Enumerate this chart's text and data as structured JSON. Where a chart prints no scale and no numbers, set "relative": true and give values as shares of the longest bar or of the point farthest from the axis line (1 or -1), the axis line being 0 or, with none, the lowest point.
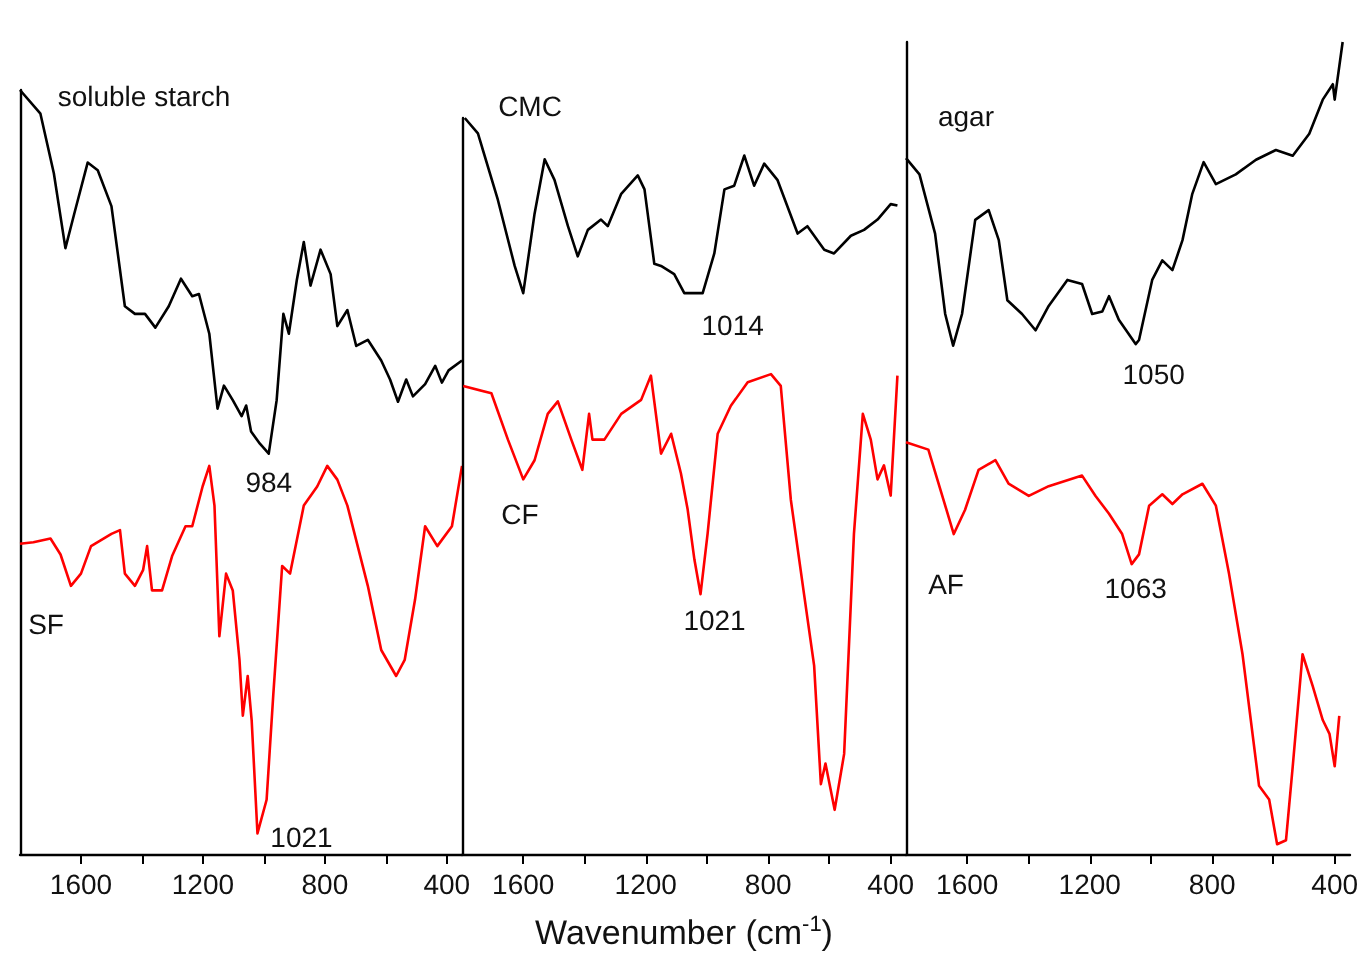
{
  "chart_data": [
    {
      "type": "line",
      "relative": true,
      "xlim": [
        1800,
        350
      ],
      "xticks": [
        1600,
        {
          "value": 1400,
          "label": null
        },
        1200,
        {
          "value": 1000,
          "label": null
        },
        800,
        {
          "value": 600,
          "label": null
        },
        400
      ],
      "series": [
        {
          "color": "#000000",
          "x": [
            1800,
            1733,
            1689,
            1651,
            1622,
            1578,
            1545,
            1500,
            1456,
            1423,
            1390,
            1356,
            1312,
            1272,
            1235,
            1213,
            1179,
            1152,
            1131,
            1102,
            1073,
            1058,
            1042,
            1013,
            984,
            958,
            936,
            918,
            892,
            869,
            847,
            814,
            781,
            759,
            726,
            697,
            659,
            615,
            586,
            560,
            533,
            511,
            471,
            438,
            416,
            394,
            350
          ],
          "values": [
            1,
            0.969,
            0.891,
            0.793,
            0.838,
            0.905,
            0.895,
            0.848,
            0.717,
            0.707,
            0.707,
            0.689,
            0.717,
            0.753,
            0.73,
            0.733,
            0.681,
            0.583,
            0.613,
            0.594,
            0.573,
            0.587,
            0.553,
            0.537,
            0.524,
            0.594,
            0.707,
            0.681,
            0.751,
            0.801,
            0.744,
            0.791,
            0.759,
            0.691,
            0.712,
            0.665,
            0.673,
            0.646,
            0.621,
            0.592,
            0.621,
            0.599,
            0.615,
            0.639,
            0.617,
            0.633,
            0.646
          ]
        },
        {
          "color": "#ff0000",
          "x": [
            1800,
            1756,
            1700,
            1667,
            1633,
            1600,
            1567,
            1500,
            1472,
            1456,
            1423,
            1396,
            1383,
            1367,
            1334,
            1301,
            1257,
            1235,
            1201,
            1179,
            1162,
            1146,
            1124,
            1102,
            1080,
            1069,
            1053,
            1040,
            1021,
            991,
            969,
            940,
            914,
            869,
            825,
            792,
            759,
            726,
            659,
            615,
            566,
            538,
            504,
            471,
            431,
            383,
            350
          ],
          "values": [
            0.406,
            0.408,
            0.413,
            0.392,
            0.351,
            0.367,
            0.403,
            0.419,
            0.424,
            0.367,
            0.351,
            0.372,
            0.403,
            0.345,
            0.345,
            0.39,
            0.429,
            0.429,
            0.481,
            0.508,
            0.456,
            0.285,
            0.367,
            0.345,
            0.254,
            0.181,
            0.233,
            0.175,
            0.027,
            0.071,
            0.209,
            0.377,
            0.367,
            0.456,
            0.481,
            0.508,
            0.49,
            0.456,
            0.351,
            0.267,
            0.233,
            0.254,
            0.333,
            0.429,
            0.403,
            0.429,
            0.508
          ]
        }
      ],
      "annotations": [
        "soluble starch",
        {
          "text": "984",
          "x": 984,
          "y": 0.524
        },
        "SF",
        {
          "text": "1021",
          "x": 1021,
          "y": 0.027
        }
      ]
    },
    {
      "type": "line",
      "relative": true,
      "xlabel": "Wavenumber (cm$^{-1}$)",
      "xlim": [
        1800,
        350
      ],
      "xticks": [
        1600,
        {
          "value": 1400,
          "label": null
        },
        1200,
        {
          "value": 1000,
          "label": null
        },
        800,
        {
          "value": 600,
          "label": null
        },
        400
      ],
      "series": [
        {
          "color": "#000000",
          "x": [
            1791,
            1748,
            1683,
            1628,
            1600,
            1563,
            1530,
            1498,
            1454,
            1422,
            1389,
            1346,
            1324,
            1280,
            1226,
            1204,
            1172,
            1150,
            1107,
            1074,
            1030,
            1014,
            976,
            943,
            911,
            878,
            846,
            813,
            770,
            704,
            672,
            617,
            585,
            530,
            487,
            443,
            400,
            378
          ],
          "values": [
            1,
            0.979,
            0.889,
            0.799,
            0.762,
            0.87,
            0.944,
            0.916,
            0.853,
            0.812,
            0.848,
            0.862,
            0.853,
            0.897,
            0.922,
            0.903,
            0.802,
            0.799,
            0.788,
            0.762,
            0.762,
            0.762,
            0.816,
            0.903,
            0.908,
            0.949,
            0.908,
            0.938,
            0.916,
            0.843,
            0.853,
            0.821,
            0.816,
            0.84,
            0.848,
            0.862,
            0.883,
            0.881
          ]
        },
        {
          "color": "#ff0000",
          "x": [
            1796,
            1704,
            1650,
            1600,
            1563,
            1520,
            1487,
            1443,
            1407,
            1385,
            1374,
            1335,
            1280,
            1215,
            1183,
            1150,
            1117,
            1085,
            1063,
            1041,
            1021,
            998,
            965,
            922,
            867,
            791,
            759,
            726,
            683,
            650,
            628,
            613,
            583,
            552,
            520,
            491,
            465,
            443,
            422,
            400,
            378
          ],
          "values": [
            0.636,
            0.626,
            0.563,
            0.509,
            0.535,
            0.598,
            0.615,
            0.563,
            0.522,
            0.598,
            0.563,
            0.563,
            0.598,
            0.617,
            0.65,
            0.544,
            0.571,
            0.517,
            0.468,
            0.4,
            0.353,
            0.435,
            0.571,
            0.609,
            0.641,
            0.652,
            0.636,
            0.481,
            0.353,
            0.256,
            0.095,
            0.123,
            0.06,
            0.136,
            0.435,
            0.598,
            0.563,
            0.509,
            0.528,
            0.487,
            0.65
          ]
        }
      ],
      "annotations": [
        "CMC",
        {
          "text": "1014",
          "x": 1014,
          "y": 0.762
        },
        "CF",
        {
          "text": "1021",
          "x": 1021,
          "y": 0.353
        }
      ]
    },
    {
      "type": "line",
      "relative": true,
      "xlim": [
        1800,
        350
      ],
      "xticks": [
        1600,
        {
          "value": 1400,
          "label": null
        },
        1200,
        {
          "value": 1000,
          "label": null
        },
        800,
        {
          "value": 600,
          "label": null
        },
        400
      ],
      "series": [
        {
          "color": "#000000",
          "x": [
            1800,
            1756,
            1705,
            1672,
            1646,
            1617,
            1574,
            1530,
            1497,
            1469,
            1421,
            1377,
            1334,
            1273,
            1225,
            1192,
            1159,
            1137,
            1105,
            1050,
            1039,
            996,
            963,
            930,
            897,
            865,
            828,
            788,
            723,
            657,
            592,
            537,
            483,
            439,
            406,
            400,
            374
          ],
          "values": [
            0.857,
            0.837,
            0.764,
            0.665,
            0.626,
            0.665,
            0.781,
            0.793,
            0.756,
            0.682,
            0.665,
            0.645,
            0.675,
            0.707,
            0.702,
            0.665,
            0.668,
            0.687,
            0.658,
            0.628,
            0.633,
            0.707,
            0.731,
            0.719,
            0.756,
            0.813,
            0.852,
            0.825,
            0.837,
            0.855,
            0.867,
            0.86,
            0.887,
            0.929,
            0.948,
            0.929,
            1.0
          ]
        },
        {
          "color": "#ff0000",
          "x": [
            1800,
            1727,
            1683,
            1644,
            1607,
            1563,
            1508,
            1465,
            1399,
            1334,
            1225,
            1181,
            1137,
            1094,
            1063,
            1039,
            1006,
            963,
            930,
            897,
            832,
            788,
            745,
            701,
            647,
            614,
            588,
            559,
            537,
            505,
            472,
            439,
            417,
            400,
            385
          ],
          "values": [
            0.507,
            0.498,
            0.443,
            0.394,
            0.424,
            0.473,
            0.485,
            0.456,
            0.441,
            0.453,
            0.466,
            0.441,
            0.419,
            0.394,
            0.357,
            0.369,
            0.429,
            0.443,
            0.431,
            0.443,
            0.456,
            0.429,
            0.345,
            0.246,
            0.084,
            0.067,
            0.012,
            0.017,
            0.108,
            0.246,
            0.207,
            0.165,
            0.148,
            0.108,
            0.17
          ]
        }
      ],
      "annotations": [
        "agar",
        {
          "text": "1050",
          "x": 1050,
          "y": 0.628
        },
        "AF",
        {
          "text": "1063",
          "x": 1063,
          "y": 0.357
        }
      ]
    }
  ]
}
